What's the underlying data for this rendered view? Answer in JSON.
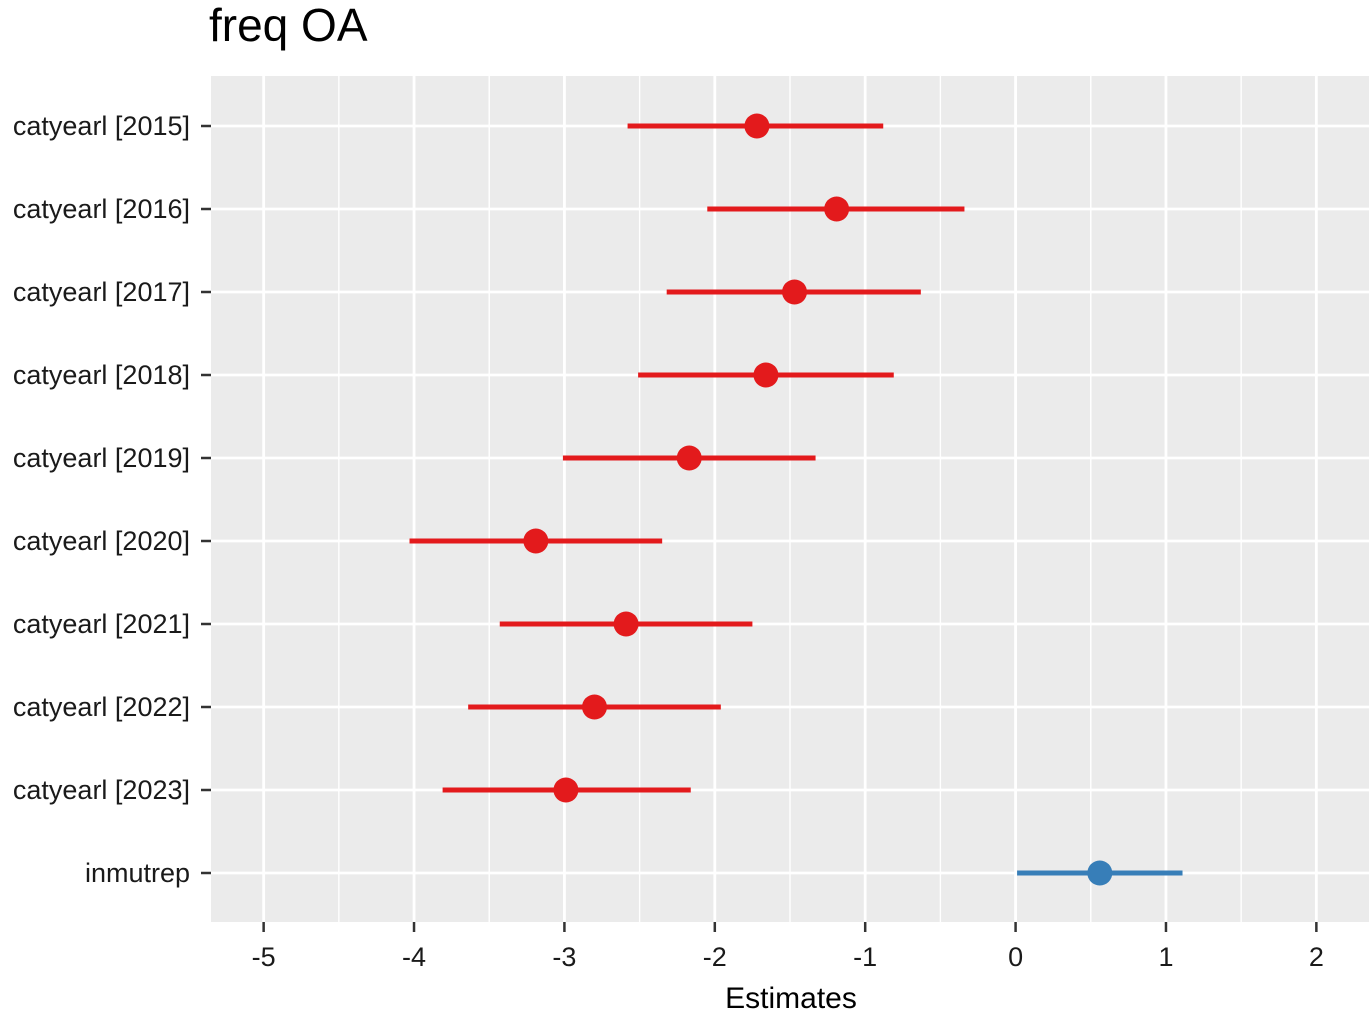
{
  "chart_data": {
    "type": "scatter",
    "title": "freq OA",
    "xlabel": "Estimates",
    "ylabel": "",
    "xlim": [
      -5.35,
      2.35
    ],
    "xticks": [
      -5,
      -4,
      -3,
      -2,
      -1,
      0,
      1,
      2
    ],
    "xtick_labels": [
      "-5",
      "-4",
      "-3",
      "-2",
      "-1",
      "0",
      "1",
      "2"
    ],
    "grid": true,
    "legend": "none",
    "categories": [
      "catyearl [2015]",
      "catyearl [2016]",
      "catyearl [2017]",
      "catyearl [2018]",
      "catyearl [2019]",
      "catyearl [2020]",
      "catyearl [2021]",
      "catyearl [2022]",
      "catyearl [2023]",
      "inmutrep"
    ],
    "estimates": [
      -1.72,
      -1.19,
      -1.47,
      -1.66,
      -2.17,
      -3.19,
      -2.59,
      -2.8,
      -2.99,
      0.56
    ],
    "ci_low": [
      -2.58,
      -2.05,
      -2.32,
      -2.51,
      -3.01,
      -4.03,
      -3.43,
      -3.64,
      -3.81,
      0.01
    ],
    "ci_high": [
      -0.88,
      -0.34,
      -0.63,
      -0.81,
      -1.33,
      -2.35,
      -1.75,
      -1.96,
      -2.16,
      1.11
    ],
    "colors": [
      "#e31a1c",
      "#e31a1c",
      "#e31a1c",
      "#e31a1c",
      "#e31a1c",
      "#e31a1c",
      "#e31a1c",
      "#e31a1c",
      "#e31a1c",
      "#377eb8"
    ],
    "panel_background": "#ebebeb",
    "grid_color": "#ffffff"
  }
}
